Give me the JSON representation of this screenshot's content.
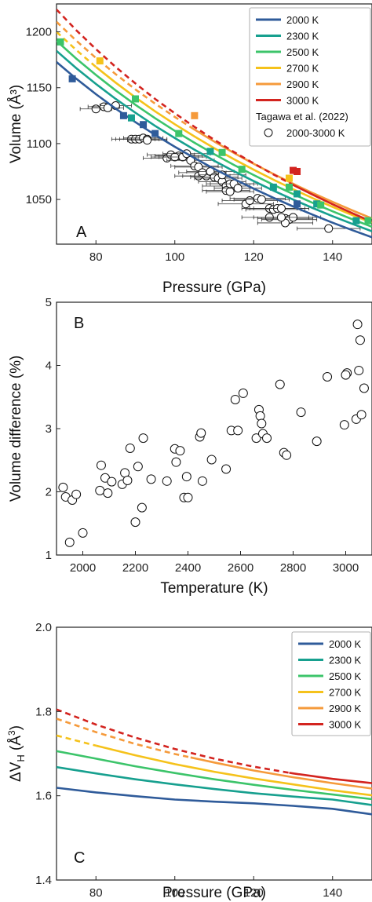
{
  "colors": {
    "2000 K": "#2f5b9a",
    "2300 K": "#17a08f",
    "2500 K": "#3cc46a",
    "2700 K": "#f5c21b",
    "2900 K": "#f59a3b",
    "3000 K": "#d3241f"
  },
  "chart_data": [
    {
      "type": "line",
      "panel": "A",
      "xlabel": "Pressure (GPa)",
      "ylabel": "Volume (Å³)",
      "xlim": [
        70,
        150
      ],
      "ylim": [
        1010,
        1225
      ],
      "xticks": [
        80,
        100,
        120,
        140
      ],
      "yticks": [
        1050,
        1100,
        1150,
        1200
      ],
      "legend": {
        "placement": "top-right",
        "entries": [
          "2000 K",
          "2300 K",
          "2500 K",
          "2700 K",
          "2900 K",
          "3000 K"
        ],
        "ref_title": "Tagawa et al. (2022)",
        "ref_label": "2000-3000 K"
      },
      "series": [
        {
          "name": "2000 K",
          "x": [
            70,
            75,
            80,
            85,
            90,
            95,
            100,
            105,
            110,
            115,
            120,
            125,
            130,
            135,
            140,
            145,
            150
          ],
          "y": [
            1173,
            1158.1,
            1144.2,
            1131.3,
            1119.2,
            1107.8,
            1097.1,
            1087.0,
            1077.4,
            1068.3,
            1059.7,
            1051.5,
            1043.7,
            1036.3,
            1029.2,
            1022.5,
            1016.1
          ],
          "dashed_until": null
        },
        {
          "name": "2300 K",
          "x": [
            70,
            75,
            80,
            85,
            90,
            95,
            100,
            105,
            110,
            115,
            120,
            125,
            130,
            135,
            140,
            145,
            150
          ],
          "y": [
            1183,
            1167.6,
            1153.3,
            1140.0,
            1127.6,
            1115.9,
            1104.9,
            1094.5,
            1084.6,
            1075.3,
            1066.4,
            1057.9,
            1049.9,
            1042.3,
            1035.0,
            1028.1,
            1021.5
          ],
          "dashed_until": null
        },
        {
          "name": "2500 K",
          "x": [
            70,
            75,
            80,
            85,
            90,
            95,
            100,
            105,
            110,
            115,
            120,
            125,
            130,
            135,
            140,
            145,
            150
          ],
          "y": [
            1192,
            1176.1,
            1161.4,
            1147.6,
            1134.8,
            1122.7,
            1111.4,
            1100.7,
            1090.5,
            1080.9,
            1071.8,
            1063.1,
            1054.8,
            1046.9,
            1039.4,
            1032.3,
            1025.5
          ],
          "dashed_until": null
        },
        {
          "name": "2700 K",
          "x": [
            70,
            75,
            80,
            85,
            90,
            95,
            100,
            105,
            110,
            115,
            120,
            125,
            130,
            135,
            140,
            145,
            150
          ],
          "y": [
            1200,
            1183.8,
            1168.6,
            1154.5,
            1141.3,
            1128.9,
            1117.3,
            1106.3,
            1095.9,
            1086.0,
            1076.6,
            1067.7,
            1059.2,
            1051.1,
            1043.4,
            1036.1,
            1029.1
          ],
          "dashed_until": 80
        },
        {
          "name": "2900 K",
          "x": [
            70,
            75,
            80,
            85,
            90,
            95,
            100,
            105,
            110,
            115,
            120,
            125,
            130,
            135,
            140,
            145,
            150
          ],
          "y": [
            1209,
            1192.2,
            1176.6,
            1162.1,
            1148.5,
            1135.8,
            1123.8,
            1112.5,
            1101.8,
            1091.6,
            1081.9,
            1072.8,
            1064.0,
            1055.7,
            1047.8,
            1040.2,
            1033.0
          ],
          "dashed_until": 104
        },
        {
          "name": "3000 K",
          "x": [
            70,
            75,
            80,
            85,
            90,
            95,
            100,
            105,
            110,
            115,
            120,
            125,
            130,
            135,
            140,
            145,
            150
          ],
          "y": [
            1220,
            1201.5,
            1184.5,
            1168.6,
            1153.8,
            1140.0,
            1127.1,
            1114.9,
            1103.4,
            1092.5,
            1082.2,
            1072.4,
            1063.0,
            1054.2,
            1045.7,
            1037.7,
            1030.0
          ],
          "dashed_until": 129
        }
      ],
      "markers": [
        {
          "name": "2000 K",
          "x": [
            74,
            87,
            92,
            95,
            131
          ],
          "y": [
            1158,
            1125,
            1117,
            1109,
            1046
          ]
        },
        {
          "name": "2300 K",
          "x": [
            89,
            109,
            125,
            131,
            136,
            146
          ],
          "y": [
            1123,
            1093,
            1061,
            1055,
            1046,
            1031
          ]
        },
        {
          "name": "2500 K",
          "x": [
            71,
            90,
            101,
            112,
            117,
            129,
            137,
            149
          ],
          "y": [
            1191,
            1140,
            1109,
            1092,
            1077,
            1061,
            1045,
            1031
          ]
        },
        {
          "name": "2700 K",
          "x": [
            81,
            129
          ],
          "y": [
            1174,
            1069
          ]
        },
        {
          "name": "2900 K",
          "x": [
            105
          ],
          "y": [
            1125
          ]
        },
        {
          "name": "3000 K",
          "x": [
            130,
            131
          ],
          "y": [
            1076,
            1075
          ]
        }
      ],
      "reference_points": {
        "label": "2000-3000 K",
        "x": [
          80,
          82,
          85,
          83,
          89,
          90,
          91,
          92,
          93,
          93,
          98,
          99,
          101,
          100,
          102,
          103,
          104,
          105,
          106,
          106,
          108,
          107,
          109,
          110,
          111,
          112,
          113,
          114,
          113,
          112,
          115,
          114,
          116,
          118,
          119,
          121,
          122,
          124,
          125,
          126,
          124,
          127,
          128,
          129,
          130,
          128,
          127,
          139
        ],
        "y": [
          1131,
          1133,
          1134,
          1132,
          1104,
          1104,
          1104,
          1105,
          1104,
          1103,
          1087,
          1090,
          1089,
          1088,
          1088,
          1091,
          1085,
          1080,
          1079,
          1071,
          1071,
          1074,
          1075,
          1070,
          1069,
          1066,
          1062,
          1064,
          1058,
          1072,
          1064,
          1057,
          1060,
          1046,
          1049,
          1051,
          1050,
          1042,
          1041,
          1042,
          1034,
          1042,
          1033,
          1032,
          1034,
          1029,
          1034,
          1024
        ],
        "xerr": [
          4,
          4,
          4,
          4,
          5,
          5,
          5,
          5,
          5,
          5,
          6,
          6,
          6,
          6,
          6,
          6,
          6,
          6,
          6,
          6,
          6,
          6,
          6,
          6,
          6,
          6,
          6,
          6,
          6,
          6,
          6,
          6,
          6,
          7,
          7,
          7,
          7,
          7,
          7,
          7,
          7,
          7,
          7,
          7,
          7,
          7,
          7,
          8
        ]
      },
      "panel_label": "A"
    },
    {
      "type": "scatter",
      "panel": "B",
      "xlabel": "Temperature (K)",
      "ylabel": "Volume difference (%)",
      "xlim": [
        1900,
        3100
      ],
      "ylim": [
        1,
        5
      ],
      "xticks": [
        2000,
        2200,
        2400,
        2600,
        2800,
        3000
      ],
      "yticks": [
        1,
        2,
        3,
        4,
        5
      ],
      "x": [
        1925,
        1935,
        1950,
        1960,
        1975,
        2000,
        2065,
        2070,
        2085,
        2095,
        2110,
        2150,
        2160,
        2170,
        2180,
        2200,
        2210,
        2225,
        2230,
        2260,
        2320,
        2350,
        2355,
        2370,
        2385,
        2395,
        2400,
        2445,
        2450,
        2455,
        2490,
        2545,
        2565,
        2580,
        2590,
        2610,
        2660,
        2670,
        2675,
        2680,
        2685,
        2700,
        2750,
        2765,
        2775,
        2830,
        2890,
        2930,
        2995,
        3005,
        3040,
        3045,
        3050,
        3055,
        3060
      ],
      "y": [
        2.07,
        1.92,
        1.2,
        1.87,
        1.96,
        1.35,
        2.02,
        2.42,
        2.22,
        1.98,
        2.16,
        2.12,
        2.3,
        2.18,
        2.69,
        1.52,
        2.4,
        1.75,
        2.85,
        2.2,
        2.17,
        2.68,
        2.47,
        2.65,
        1.91,
        2.24,
        1.91,
        2.87,
        2.93,
        2.17,
        2.51,
        2.36,
        2.97,
        3.46,
        2.97,
        3.56,
        2.85,
        3.3,
        3.2,
        3.08,
        2.92,
        2.85,
        3.7,
        2.62,
        2.58,
        3.26,
        2.8,
        3.82,
        3.06,
        3.88,
        3.15,
        4.65,
        3.92,
        4.4,
        3.22
      ],
      "x_extra": [
        3000,
        3070
      ],
      "y_extra": [
        3.85,
        3.64
      ],
      "panel_label": "B"
    },
    {
      "type": "line",
      "panel": "C",
      "xlabel": "Pressure (GPa)",
      "ylabel": "ΔV_H (Å³)",
      "xlim": [
        70,
        150
      ],
      "ylim": [
        1.4,
        2.0
      ],
      "xticks": [
        80,
        100,
        120,
        140
      ],
      "yticks": [
        1.4,
        1.6,
        1.8,
        2.0
      ],
      "legend": {
        "placement": "top-right",
        "entries": [
          "2000 K",
          "2300 K",
          "2500 K",
          "2700 K",
          "2900 K",
          "3000 K"
        ]
      },
      "series": [
        {
          "name": "2000 K",
          "x": [
            70,
            80,
            90,
            100,
            110,
            120,
            130,
            140,
            150
          ],
          "y": [
            1.619,
            1.608,
            1.599,
            1.591,
            1.586,
            1.582,
            1.576,
            1.569,
            1.556
          ],
          "dashed_until": null
        },
        {
          "name": "2300 K",
          "x": [
            70,
            80,
            90,
            100,
            110,
            120,
            130,
            140,
            150
          ],
          "y": [
            1.668,
            1.653,
            1.639,
            1.627,
            1.616,
            1.606,
            1.598,
            1.591,
            1.578
          ],
          "dashed_until": null
        },
        {
          "name": "2500 K",
          "x": [
            70,
            80,
            90,
            100,
            110,
            120,
            130,
            140,
            150
          ],
          "y": [
            1.706,
            1.688,
            1.67,
            1.654,
            1.639,
            1.626,
            1.614,
            1.603,
            1.592
          ],
          "dashed_until": null
        },
        {
          "name": "2700 K",
          "x": [
            70,
            80,
            90,
            100,
            110,
            120,
            130,
            140,
            150
          ],
          "y": [
            1.743,
            1.719,
            1.696,
            1.675,
            1.657,
            1.641,
            1.627,
            1.613,
            1.601
          ],
          "dashed_until": 80
        },
        {
          "name": "2900 K",
          "x": [
            70,
            80,
            90,
            100,
            110,
            120,
            130,
            140,
            150
          ],
          "y": [
            1.783,
            1.751,
            1.723,
            1.699,
            1.679,
            1.66,
            1.644,
            1.63,
            1.617
          ],
          "dashed_until": 104
        },
        {
          "name": "3000 K",
          "x": [
            70,
            80,
            90,
            100,
            110,
            120,
            130,
            140,
            150
          ],
          "y": [
            1.805,
            1.769,
            1.738,
            1.711,
            1.688,
            1.669,
            1.653,
            1.64,
            1.63
          ],
          "dashed_until": 129
        }
      ],
      "panel_label": "C"
    }
  ]
}
